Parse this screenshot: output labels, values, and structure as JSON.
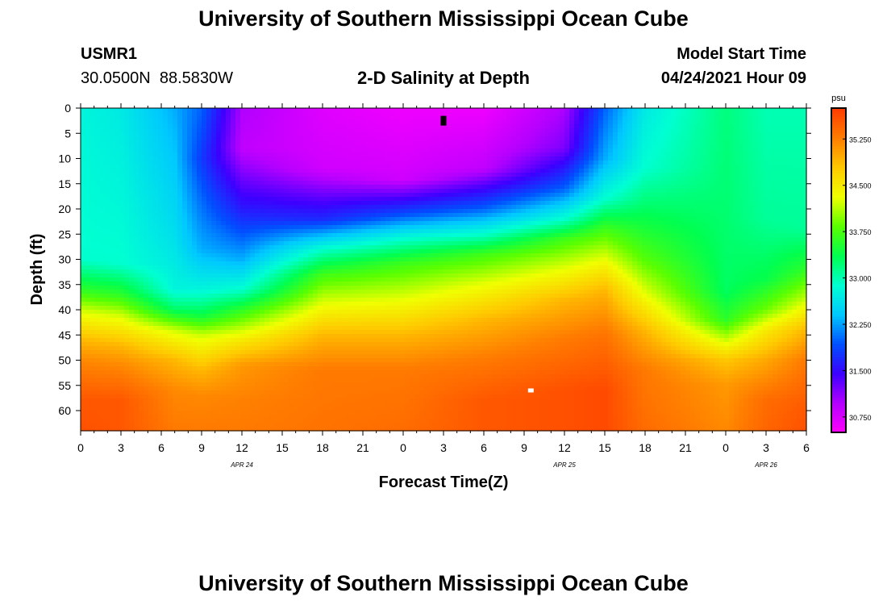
{
  "header": {
    "title": "University of Southern Mississippi Ocean Cube",
    "station_id": "USMR1",
    "station_coords": "30.0500N  88.5830W",
    "plot_title": "2-D Salinity at Depth",
    "model_start_label": "Model Start Time",
    "model_start_value": "04/24/2021 Hour 09"
  },
  "footer": {
    "title": "University of Southern Mississippi Ocean Cube"
  },
  "chart_data": {
    "type": "heatmap",
    "title": "2-D Salinity at Depth",
    "xlabel": "Forecast Time(Z)",
    "ylabel": "Depth (ft)",
    "x_tick_labels": [
      "0",
      "3",
      "6",
      "9",
      "12",
      "15",
      "18",
      "21",
      "0",
      "3",
      "6",
      "9",
      "12",
      "15",
      "18",
      "21",
      "0",
      "3",
      "6"
    ],
    "x_range_hours": [
      0,
      54
    ],
    "date_labels": [
      {
        "label": "APR  24",
        "hour": 12
      },
      {
        "label": "APR  25",
        "hour": 36
      },
      {
        "label": "APR  26",
        "hour": 51
      }
    ],
    "y_tick_labels": [
      "0",
      "5",
      "10",
      "15",
      "20",
      "25",
      "30",
      "35",
      "40",
      "45",
      "50",
      "55",
      "60"
    ],
    "y_range_ft": [
      0,
      64
    ],
    "colorbar": {
      "unit": "psu",
      "range": [
        30.5,
        35.75
      ],
      "tick_labels": [
        "35.250",
        "34.500",
        "33.750",
        "33.000",
        "32.250",
        "31.500",
        "30.750"
      ],
      "tick_values": [
        35.25,
        34.5,
        33.75,
        33.0,
        32.25,
        31.5,
        30.75
      ],
      "colors": [
        "#ff00ff",
        "#b400ff",
        "#3c00ff",
        "#0050ff",
        "#00c8ff",
        "#00ffd2",
        "#00ff50",
        "#5aff00",
        "#f0ff00",
        "#ffc800",
        "#ff7d00",
        "#ff3c00"
      ]
    },
    "markers": [
      {
        "name": "surface-marker",
        "hour": 27,
        "depth_ft": 2.5,
        "color": "#000000"
      },
      {
        "name": "bottom-marker",
        "hour": 33.5,
        "depth_ft": 56,
        "color": "#ffffff"
      }
    ],
    "profile_keyframes": [
      {
        "hour": 0,
        "layers": [
          [
            0,
            32.8
          ],
          [
            30,
            32.9
          ],
          [
            36,
            33.6
          ],
          [
            40,
            34.2
          ],
          [
            46,
            34.9
          ],
          [
            50,
            35.2
          ],
          [
            58,
            35.55
          ],
          [
            64,
            35.6
          ]
        ]
      },
      {
        "hour": 3,
        "layers": [
          [
            0,
            32.7
          ],
          [
            31,
            32.9
          ],
          [
            37,
            33.6
          ],
          [
            41,
            34.2
          ],
          [
            47,
            34.9
          ],
          [
            51,
            35.2
          ],
          [
            58,
            35.55
          ],
          [
            64,
            35.55
          ]
        ]
      },
      {
        "hour": 7,
        "layers": [
          [
            0,
            32.3
          ],
          [
            25,
            32.6
          ],
          [
            36,
            32.8
          ],
          [
            40,
            33.3
          ],
          [
            44,
            34.2
          ],
          [
            50,
            34.9
          ],
          [
            56,
            35.2
          ],
          [
            64,
            35.3
          ]
        ]
      },
      {
        "hour": 9,
        "layers": [
          [
            0,
            32.0
          ],
          [
            10,
            31.8
          ],
          [
            28,
            32.3
          ],
          [
            36,
            32.8
          ],
          [
            41,
            33.4
          ],
          [
            45,
            34.2
          ],
          [
            52,
            34.9
          ],
          [
            57,
            35.2
          ],
          [
            64,
            35.3
          ]
        ]
      },
      {
        "hour": 12,
        "layers": [
          [
            0,
            31.0
          ],
          [
            8,
            30.9
          ],
          [
            20,
            31.6
          ],
          [
            30,
            32.3
          ],
          [
            36,
            32.9
          ],
          [
            40,
            33.6
          ],
          [
            46,
            34.5
          ],
          [
            51,
            35.1
          ],
          [
            58,
            35.25
          ],
          [
            64,
            35.3
          ]
        ]
      },
      {
        "hour": 18,
        "layers": [
          [
            0,
            30.7
          ],
          [
            12,
            30.8
          ],
          [
            22,
            31.7
          ],
          [
            28,
            32.9
          ],
          [
            33,
            33.7
          ],
          [
            39,
            34.3
          ],
          [
            45,
            34.9
          ],
          [
            52,
            35.3
          ],
          [
            64,
            35.35
          ]
        ]
      },
      {
        "hour": 24,
        "layers": [
          [
            0,
            30.6
          ],
          [
            14,
            30.8
          ],
          [
            21,
            31.9
          ],
          [
            26,
            32.9
          ],
          [
            31,
            33.7
          ],
          [
            38,
            34.3
          ],
          [
            45,
            34.9
          ],
          [
            52,
            35.3
          ],
          [
            64,
            35.4
          ]
        ]
      },
      {
        "hour": 30,
        "layers": [
          [
            0,
            30.6
          ],
          [
            12,
            30.9
          ],
          [
            20,
            32.0
          ],
          [
            25,
            32.9
          ],
          [
            29,
            33.7
          ],
          [
            35,
            34.3
          ],
          [
            42,
            34.9
          ],
          [
            50,
            35.3
          ],
          [
            58,
            35.55
          ],
          [
            64,
            35.55
          ]
        ]
      },
      {
        "hour": 36,
        "layers": [
          [
            0,
            31.0
          ],
          [
            8,
            31.2
          ],
          [
            16,
            32.0
          ],
          [
            22,
            32.9
          ],
          [
            26,
            33.7
          ],
          [
            32,
            34.3
          ],
          [
            38,
            34.9
          ],
          [
            46,
            35.3
          ],
          [
            56,
            35.6
          ],
          [
            64,
            35.6
          ]
        ]
      },
      {
        "hour": 39,
        "layers": [
          [
            0,
            32.0
          ],
          [
            10,
            32.3
          ],
          [
            18,
            32.9
          ],
          [
            24,
            33.7
          ],
          [
            30,
            34.3
          ],
          [
            36,
            34.9
          ],
          [
            45,
            35.35
          ],
          [
            56,
            35.65
          ],
          [
            64,
            35.65
          ]
        ]
      },
      {
        "hour": 42,
        "layers": [
          [
            0,
            32.7
          ],
          [
            12,
            32.9
          ],
          [
            22,
            33.4
          ],
          [
            30,
            33.8
          ],
          [
            37,
            34.3
          ],
          [
            44,
            34.9
          ],
          [
            52,
            35.3
          ],
          [
            64,
            35.4
          ]
        ]
      },
      {
        "hour": 48,
        "layers": [
          [
            0,
            33.2
          ],
          [
            20,
            33.25
          ],
          [
            36,
            33.3
          ],
          [
            42,
            33.6
          ],
          [
            46,
            34.2
          ],
          [
            50,
            34.8
          ],
          [
            55,
            35.1
          ],
          [
            64,
            35.2
          ]
        ]
      },
      {
        "hour": 51,
        "layers": [
          [
            0,
            33.0
          ],
          [
            22,
            33.1
          ],
          [
            34,
            33.4
          ],
          [
            40,
            33.9
          ],
          [
            44,
            34.5
          ],
          [
            50,
            35.0
          ],
          [
            58,
            35.4
          ],
          [
            64,
            35.45
          ]
        ]
      },
      {
        "hour": 54,
        "layers": [
          [
            0,
            33.0
          ],
          [
            24,
            33.1
          ],
          [
            32,
            33.6
          ],
          [
            38,
            34.2
          ],
          [
            44,
            34.9
          ],
          [
            50,
            35.3
          ],
          [
            60,
            35.55
          ],
          [
            64,
            35.6
          ]
        ]
      }
    ]
  }
}
